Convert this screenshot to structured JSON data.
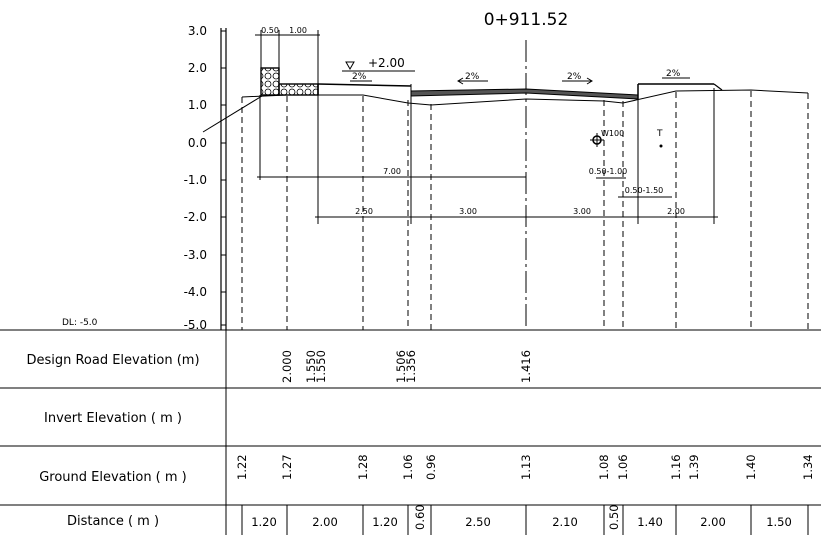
{
  "station": "0+911.52",
  "datum": "DL: -5.0",
  "elevation_ticks": [
    "3.0",
    "2.0",
    "1.0",
    "0.0",
    "-1.0",
    "-2.0",
    "-3.0",
    "-4.0",
    "-5.0"
  ],
  "water_level": "+2.00",
  "slopes": [
    "2%",
    "2%",
    "2%",
    "2%"
  ],
  "pipe_label": "W100",
  "marker_label": "T",
  "dimensions": {
    "sidewalk": [
      "0.50",
      "1.00"
    ],
    "half_width": "7.00",
    "pipe_offset": "0.50-1.00",
    "marker_offset": "0.50-1.50",
    "lanes": [
      "2.50",
      "3.00",
      "3.00",
      "2.00"
    ]
  },
  "table": {
    "row_labels": [
      "Design Road Elevation (m)",
      "Invert Elevation ( m )",
      "Ground Elevation ( m )",
      "Distance ( m )"
    ],
    "design_elevations": [
      "2.000",
      "1.550",
      "1.550",
      "1.506",
      "1.356",
      "1.416"
    ],
    "ground_elevations": [
      "1.22",
      "1.27",
      "1.28",
      "1.06",
      "0.96",
      "1.13",
      "1.08",
      "1.06",
      "1.16",
      "1.39",
      "1.40",
      "1.34"
    ],
    "distances": [
      "1.20",
      "2.00",
      "1.20",
      "0.60",
      "2.50",
      "2.10",
      "0.50",
      "1.40",
      "2.00",
      "1.50"
    ]
  }
}
